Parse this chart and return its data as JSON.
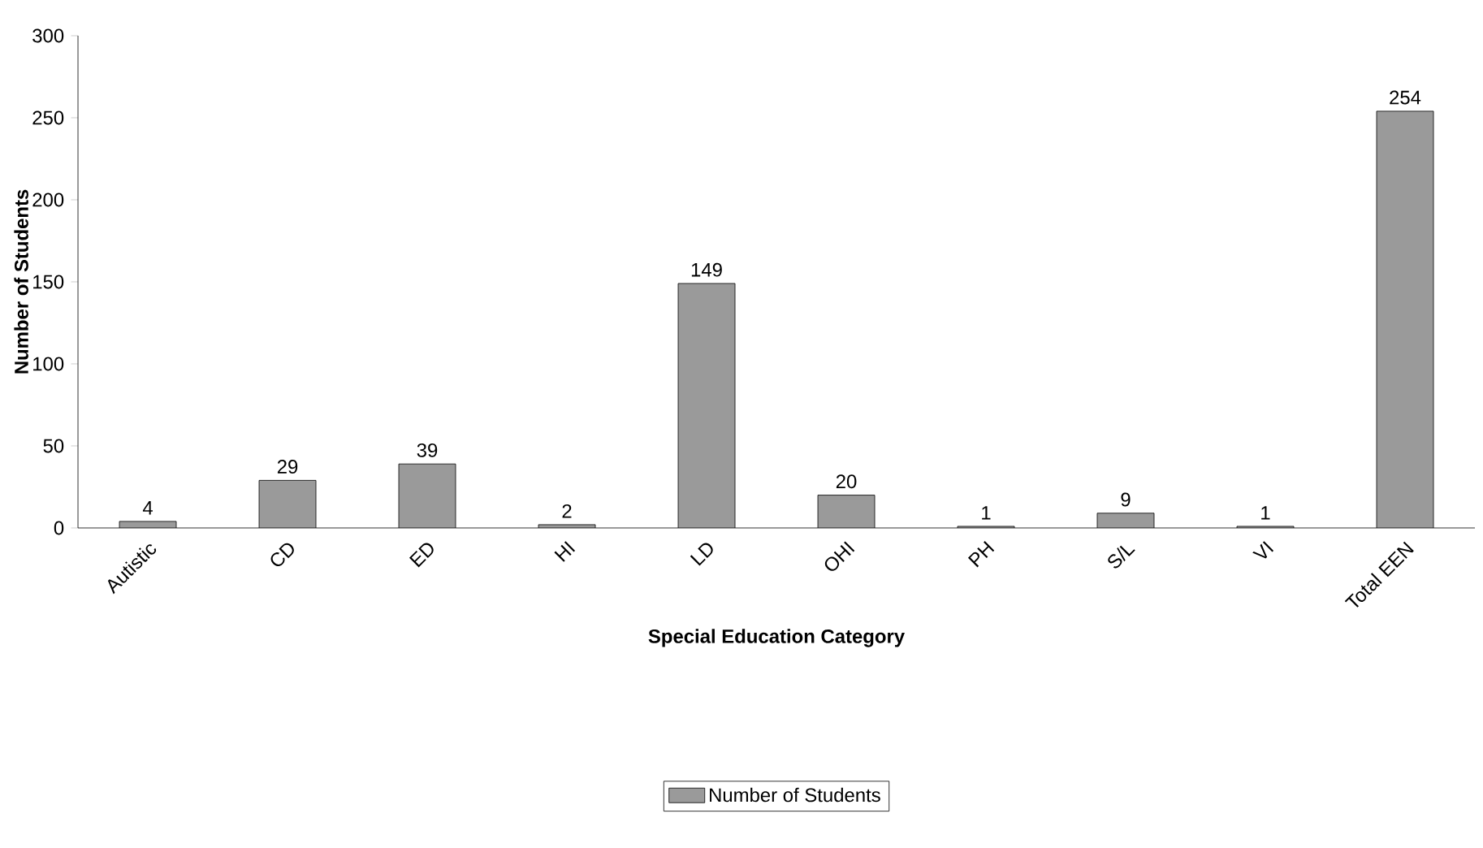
{
  "chart_data": {
    "type": "bar",
    "xlabel": "Special Education Category",
    "ylabel": "Number of Students",
    "categories": [
      "Autistic",
      "CD",
      "ED",
      "HI",
      "LD",
      "OHI",
      "PH",
      "S/L",
      "VI",
      "Total EEN"
    ],
    "series": [
      {
        "name": "Number of Students",
        "color": "#9a9a9a",
        "values": [
          4,
          29,
          39,
          2,
          149,
          20,
          1,
          9,
          1,
          254
        ]
      }
    ],
    "ylim": [
      0,
      300
    ],
    "yticks": [
      0,
      50,
      100,
      150,
      200,
      250,
      300
    ],
    "data_labels": true,
    "grid": false,
    "legend": "bottom"
  }
}
